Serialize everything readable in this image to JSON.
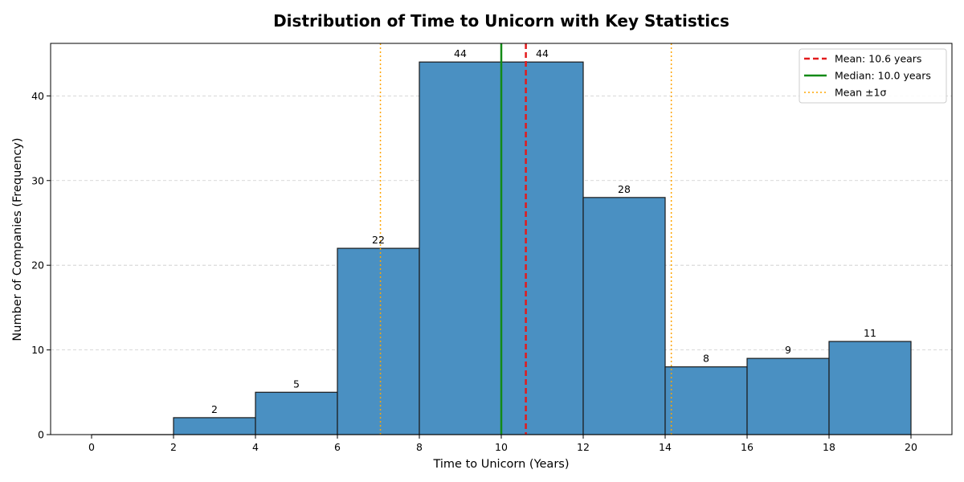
{
  "chart_data": {
    "type": "bar",
    "title": "Distribution of Time to Unicorn with Key Statistics",
    "xlabel": "Time to Unicorn (Years)",
    "ylabel": "Number of Companies (Frequency)",
    "xlim": [
      -1,
      21
    ],
    "ylim": [
      0,
      46.2
    ],
    "xticks": [
      0,
      2,
      4,
      6,
      8,
      10,
      12,
      14,
      16,
      18,
      20
    ],
    "yticks": [
      0,
      10,
      20,
      30,
      40
    ],
    "grid": "y-dashed",
    "bins": [
      {
        "start": 0,
        "end": 2,
        "count": 0
      },
      {
        "start": 2,
        "end": 4,
        "count": 2
      },
      {
        "start": 4,
        "end": 6,
        "count": 5
      },
      {
        "start": 6,
        "end": 8,
        "count": 22
      },
      {
        "start": 8,
        "end": 10,
        "count": 44
      },
      {
        "start": 10,
        "end": 12,
        "count": 44
      },
      {
        "start": 12,
        "end": 14,
        "count": 28
      },
      {
        "start": 14,
        "end": 16,
        "count": 8
      },
      {
        "start": 16,
        "end": 18,
        "count": 9
      },
      {
        "start": 18,
        "end": 20,
        "count": 11
      }
    ],
    "bar_color": "#4a90c2",
    "bar_edge_color": "#1a1a1a",
    "reference_lines": [
      {
        "name": "Mean: 10.6 years",
        "x": 10.6,
        "color": "#e31a1c",
        "style": "dashed"
      },
      {
        "name": "Median: 10.0 years",
        "x": 10.0,
        "color": "#138a17",
        "style": "solid"
      },
      {
        "name": "Mean ±1σ",
        "x": 7.05,
        "color": "#ffa500",
        "style": "dotted"
      },
      {
        "name": "Mean ±1σ",
        "x": 14.15,
        "color": "#ffa500",
        "style": "dotted"
      }
    ],
    "legend": {
      "placement": "top-right",
      "entries": [
        {
          "label": "Mean: 10.6 years",
          "color": "#e31a1c",
          "style": "dashed"
        },
        {
          "label": "Median: 10.0 years",
          "color": "#138a17",
          "style": "solid"
        },
        {
          "label": "Mean ±1σ",
          "color": "#ffa500",
          "style": "dotted"
        }
      ]
    }
  }
}
